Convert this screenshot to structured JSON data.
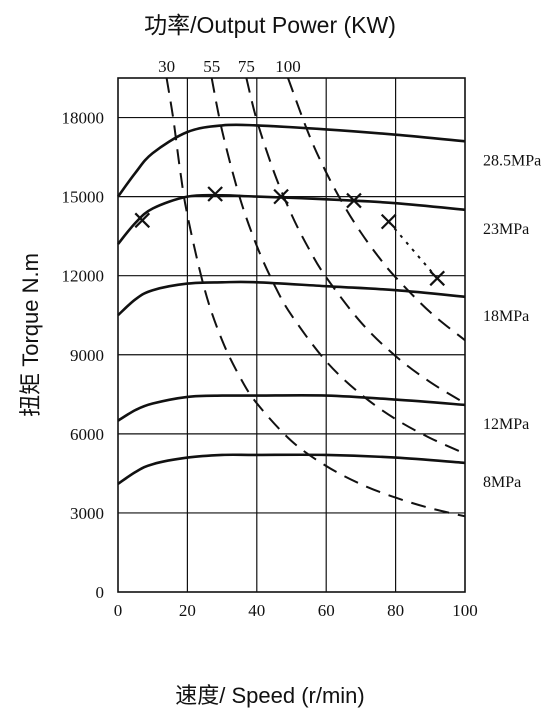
{
  "chart_data": {
    "type": "line",
    "title": "功率/Output Power (KW)",
    "xlabel": "速度/ Speed (r/min)",
    "ylabel": "扭矩 Torque N.m",
    "xlim": [
      0,
      100
    ],
    "ylim": [
      0,
      19500
    ],
    "x_ticks": [
      "0",
      "20",
      "40",
      "60",
      "80",
      "100"
    ],
    "y_ticks": [
      "0",
      "3000",
      "6000",
      "9000",
      "12000",
      "15000",
      "18000"
    ],
    "grid": true,
    "pressure_series": [
      {
        "name": "28.5MPa",
        "points": [
          [
            0,
            15000
          ],
          [
            5,
            15900
          ],
          [
            10,
            16650
          ],
          [
            20,
            17450
          ],
          [
            30,
            17700
          ],
          [
            40,
            17700
          ],
          [
            60,
            17550
          ],
          [
            80,
            17350
          ],
          [
            100,
            17100
          ]
        ]
      },
      {
        "name": "23MPa",
        "points": [
          [
            0,
            13200
          ],
          [
            5,
            14000
          ],
          [
            10,
            14550
          ],
          [
            20,
            15000
          ],
          [
            30,
            15050
          ],
          [
            40,
            15000
          ],
          [
            60,
            14900
          ],
          [
            80,
            14750
          ],
          [
            100,
            14500
          ]
        ]
      },
      {
        "name": "18MPa",
        "points": [
          [
            0,
            10500
          ],
          [
            5,
            11100
          ],
          [
            10,
            11450
          ],
          [
            20,
            11700
          ],
          [
            30,
            11750
          ],
          [
            40,
            11750
          ],
          [
            60,
            11600
          ],
          [
            80,
            11450
          ],
          [
            100,
            11200
          ]
        ]
      },
      {
        "name": "12MPa",
        "points": [
          [
            0,
            6500
          ],
          [
            5,
            6900
          ],
          [
            10,
            7150
          ],
          [
            20,
            7400
          ],
          [
            30,
            7450
          ],
          [
            40,
            7450
          ],
          [
            60,
            7450
          ],
          [
            80,
            7300
          ],
          [
            100,
            7100
          ]
        ]
      },
      {
        "name": "8MPa",
        "points": [
          [
            0,
            4100
          ],
          [
            5,
            4550
          ],
          [
            10,
            4850
          ],
          [
            20,
            5100
          ],
          [
            30,
            5200
          ],
          [
            40,
            5200
          ],
          [
            60,
            5200
          ],
          [
            80,
            5100
          ],
          [
            100,
            4900
          ]
        ]
      }
    ],
    "power_series": [
      {
        "name": "30",
        "points": [
          [
            14,
            19500
          ],
          [
            16,
            17900
          ],
          [
            18,
            15900
          ],
          [
            20,
            14300
          ],
          [
            25,
            11460
          ],
          [
            30,
            9550
          ],
          [
            35,
            8190
          ],
          [
            40,
            7160
          ],
          [
            50,
            5730
          ],
          [
            60,
            4780
          ],
          [
            70,
            4090
          ],
          [
            80,
            3580
          ],
          [
            90,
            3180
          ],
          [
            100,
            2870
          ]
        ]
      },
      {
        "name": "55",
        "points": [
          [
            27,
            19500
          ],
          [
            30,
            17500
          ],
          [
            35,
            15010
          ],
          [
            40,
            13130
          ],
          [
            45,
            11670
          ],
          [
            50,
            10500
          ],
          [
            60,
            8750
          ],
          [
            70,
            7500
          ],
          [
            80,
            6560
          ],
          [
            90,
            5840
          ],
          [
            100,
            5250
          ]
        ]
      },
      {
        "name": "75",
        "points": [
          [
            37,
            19500
          ],
          [
            40,
            17900
          ],
          [
            45,
            15920
          ],
          [
            50,
            14320
          ],
          [
            55,
            13020
          ],
          [
            60,
            11940
          ],
          [
            70,
            10230
          ],
          [
            80,
            8950
          ],
          [
            90,
            7960
          ],
          [
            100,
            7160
          ]
        ]
      },
      {
        "name": "100",
        "points": [
          [
            49,
            19500
          ],
          [
            55,
            17360
          ],
          [
            60,
            15920
          ],
          [
            65,
            14690
          ],
          [
            70,
            13640
          ],
          [
            75,
            12730
          ],
          [
            80,
            11940
          ],
          [
            90,
            10610
          ],
          [
            100,
            9550
          ]
        ]
      }
    ],
    "limit_markers": [
      [
        7,
        14100
      ],
      [
        28,
        15100
      ],
      [
        47,
        15000
      ],
      [
        68,
        14850
      ],
      [
        78,
        14050
      ],
      [
        92,
        11900
      ]
    ],
    "limit_line_dotted": [
      [
        78,
        14050
      ],
      [
        92,
        11900
      ]
    ]
  },
  "axes": {
    "top_title": "功率/Output Power (KW)",
    "bottom_title": "速度/ Speed (r/min)",
    "left_title": "扭矩 Torque N.m"
  }
}
